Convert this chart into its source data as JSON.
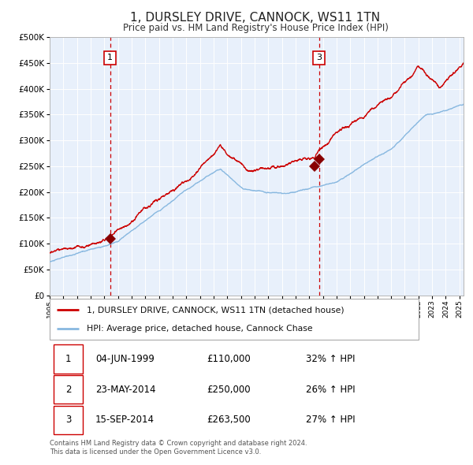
{
  "title": "1, DURSLEY DRIVE, CANNOCK, WS11 1TN",
  "subtitle": "Price paid vs. HM Land Registry's House Price Index (HPI)",
  "background_color": "#e8f0fb",
  "plot_bg_color": "#e8f0fb",
  "red_line_color": "#cc0000",
  "blue_line_color": "#88b8e0",
  "sale_marker_color": "#880000",
  "dashed_line_color": "#cc0000",
  "ylim": [
    0,
    500000
  ],
  "yticks": [
    0,
    50000,
    100000,
    150000,
    200000,
    250000,
    300000,
    350000,
    400000,
    450000,
    500000
  ],
  "legend_line1": "1, DURSLEY DRIVE, CANNOCK, WS11 1TN (detached house)",
  "legend_line2": "HPI: Average price, detached house, Cannock Chase",
  "table_rows": [
    [
      "1",
      "04-JUN-1999",
      "£110,000",
      "32% ↑ HPI"
    ],
    [
      "2",
      "23-MAY-2014",
      "£250,000",
      "26% ↑ HPI"
    ],
    [
      "3",
      "15-SEP-2014",
      "£263,500",
      "27% ↑ HPI"
    ]
  ],
  "sale1_date_num": 1999.42,
  "sale1_price": 110000,
  "sale2_date_num": 2014.39,
  "sale2_price": 250000,
  "sale3_date_num": 2014.71,
  "sale3_price": 263500,
  "footnote1": "Contains HM Land Registry data © Crown copyright and database right 2024.",
  "footnote2": "This data is licensed under the Open Government Licence v3.0.",
  "xstart": 1995.0,
  "xend": 2025.3
}
